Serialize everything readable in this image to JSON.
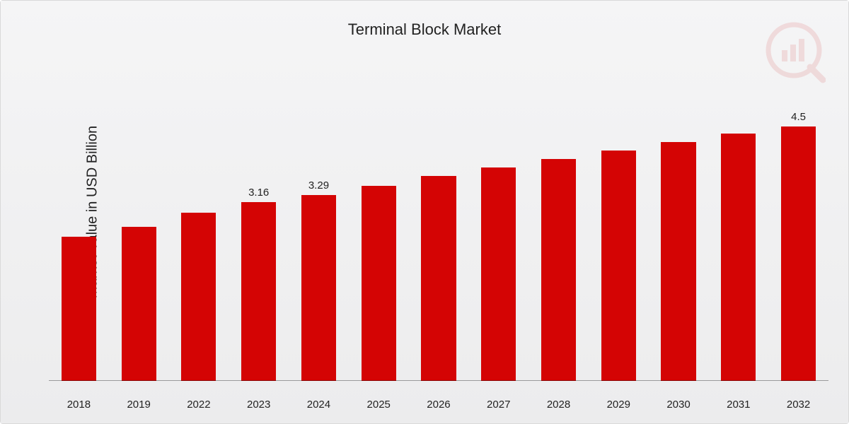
{
  "chart": {
    "type": "bar",
    "title": "Terminal Block Market",
    "title_fontsize": 22,
    "ylabel": "Market Value in USD Billion",
    "ylabel_fontsize": 20,
    "categories": [
      "2018",
      "2019",
      "2022",
      "2023",
      "2024",
      "2025",
      "2026",
      "2027",
      "2028",
      "2029",
      "2030",
      "2031",
      "2032"
    ],
    "values": [
      2.55,
      2.72,
      2.98,
      3.16,
      3.29,
      3.45,
      3.62,
      3.78,
      3.92,
      4.07,
      4.22,
      4.37,
      4.5
    ],
    "value_labels": [
      "",
      "",
      "",
      "3.16",
      "3.29",
      "",
      "",
      "",
      "",
      "",
      "",
      "",
      "4.5"
    ],
    "bar_color": "#d40404",
    "background_gradient_from": "#f5f5f6",
    "background_gradient_to": "#ececed",
    "baseline_color": "rgba(0,0,0,0.35)",
    "border_color": "#d9d9d9",
    "xlabel_fontsize": 15,
    "value_label_fontsize": 15,
    "ylim_min": 0,
    "ylim_max": 5.0,
    "bar_width_pct": 58,
    "watermark_color": "#cc0404"
  }
}
